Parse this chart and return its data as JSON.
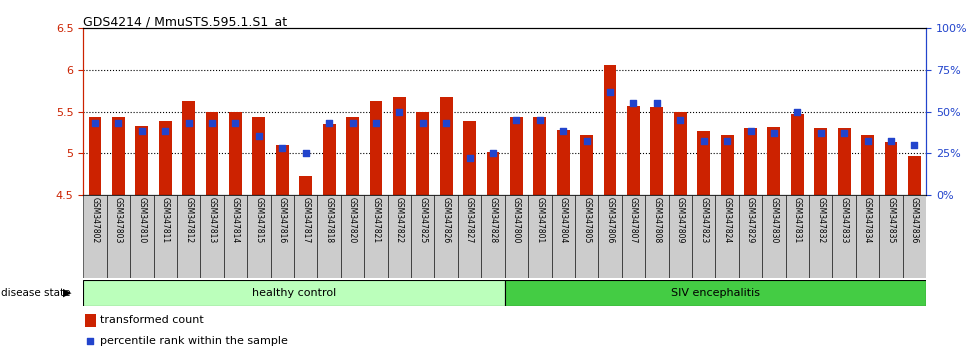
{
  "title": "GDS4214 / MmuSTS.595.1.S1_at",
  "samples": [
    "GSM347802",
    "GSM347803",
    "GSM347810",
    "GSM347811",
    "GSM347812",
    "GSM347813",
    "GSM347814",
    "GSM347815",
    "GSM347816",
    "GSM347817",
    "GSM347818",
    "GSM347820",
    "GSM347821",
    "GSM347822",
    "GSM347825",
    "GSM347826",
    "GSM347827",
    "GSM347828",
    "GSM347800",
    "GSM347801",
    "GSM347804",
    "GSM347805",
    "GSM347806",
    "GSM347807",
    "GSM347808",
    "GSM347809",
    "GSM347823",
    "GSM347824",
    "GSM347829",
    "GSM347830",
    "GSM347831",
    "GSM347832",
    "GSM347833",
    "GSM347834",
    "GSM347835",
    "GSM347836"
  ],
  "bar_values": [
    5.44,
    5.44,
    5.33,
    5.38,
    5.63,
    5.5,
    5.5,
    5.44,
    5.1,
    4.73,
    5.35,
    5.43,
    5.63,
    5.68,
    5.5,
    5.68,
    5.38,
    5.01,
    5.44,
    5.44,
    5.28,
    5.22,
    6.06,
    5.57,
    5.55,
    5.5,
    5.27,
    5.22,
    5.3,
    5.31,
    5.47,
    5.3,
    5.3,
    5.22,
    5.13,
    4.97
  ],
  "percentile_values": [
    43,
    43,
    38,
    38,
    43,
    43,
    43,
    35,
    28,
    25,
    43,
    43,
    43,
    50,
    43,
    43,
    22,
    25,
    45,
    45,
    38,
    32,
    62,
    55,
    55,
    45,
    32,
    32,
    38,
    37,
    50,
    37,
    37,
    32,
    32,
    30
  ],
  "healthy_count": 18,
  "bar_bottom": 4.5,
  "ylim_left": [
    4.5,
    6.5
  ],
  "ylim_right": [
    0,
    100
  ],
  "yticks_left": [
    4.5,
    5.0,
    5.5,
    6.0,
    6.5
  ],
  "ytick_labels_left": [
    "4.5",
    "5",
    "5.5",
    "6",
    "6.5"
  ],
  "yticks_right": [
    0,
    25,
    50,
    75,
    100
  ],
  "ytick_labels_right": [
    "0%",
    "25%",
    "50%",
    "75%",
    "100%"
  ],
  "bar_color": "#cc2200",
  "dot_color": "#2244cc",
  "healthy_bg": "#bbffbb",
  "siv_bg": "#44cc44",
  "label_bg": "#cccccc",
  "healthy_label": "healthy control",
  "siv_label": "SIV encephalitis",
  "disease_state_label": "disease state",
  "legend_bar_label": "transformed count",
  "legend_dot_label": "percentile rank within the sample"
}
